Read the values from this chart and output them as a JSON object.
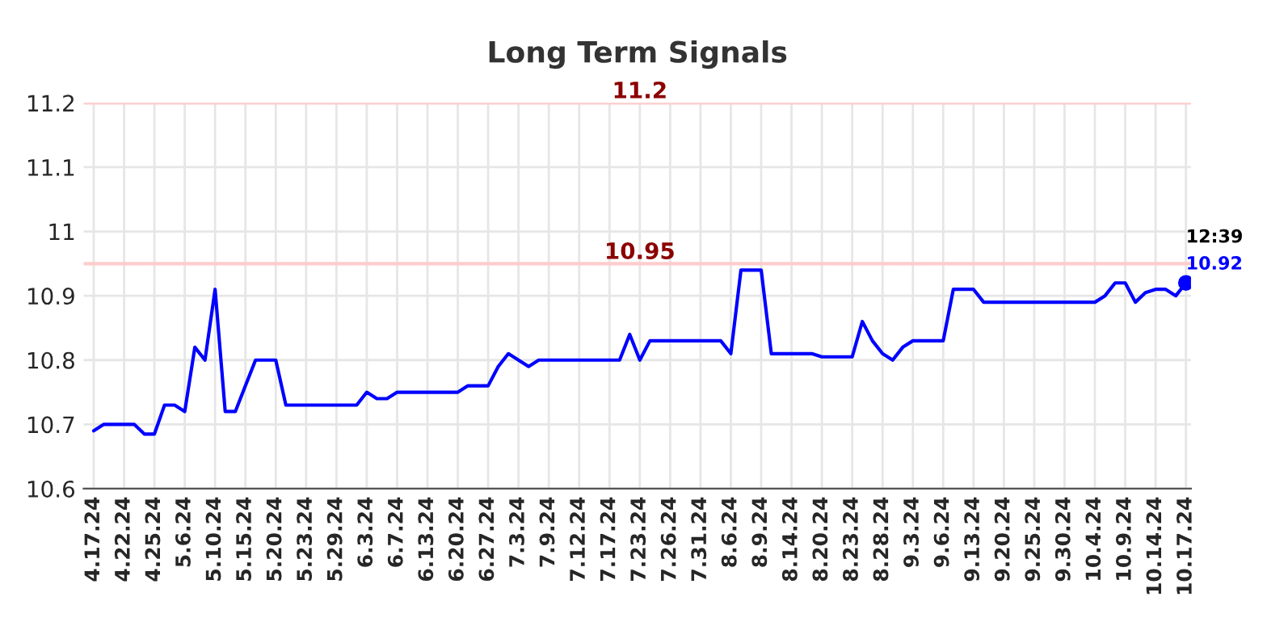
{
  "chart_data": {
    "type": "line",
    "title": "Long Term Signals",
    "categories": [
      "4.17.24",
      null,
      null,
      "4.22.24",
      null,
      null,
      "4.25.24",
      null,
      null,
      "5.6.24",
      null,
      null,
      "5.10.24",
      null,
      null,
      "5.15.24",
      null,
      null,
      "5.20.24",
      null,
      null,
      "5.23.24",
      null,
      null,
      "5.29.24",
      null,
      null,
      "6.3.24",
      null,
      null,
      "6.7.24",
      null,
      null,
      "6.13.24",
      null,
      null,
      "6.20.24",
      null,
      null,
      "6.27.24",
      null,
      null,
      "7.3.24",
      null,
      null,
      "7.9.24",
      null,
      null,
      "7.12.24",
      null,
      null,
      "7.17.24",
      null,
      null,
      "7.23.24",
      null,
      null,
      "7.26.24",
      null,
      null,
      "7.31.24",
      null,
      null,
      "8.6.24",
      null,
      null,
      "8.9.24",
      null,
      null,
      "8.14.24",
      null,
      null,
      "8.20.24",
      null,
      null,
      "8.23.24",
      null,
      null,
      "8.28.24",
      null,
      null,
      "9.3.24",
      null,
      null,
      "9.6.24",
      null,
      null,
      "9.13.24",
      null,
      null,
      "9.20.24",
      null,
      null,
      "9.25.24",
      null,
      null,
      "9.30.24",
      null,
      null,
      "10.4.24",
      null,
      null,
      "10.9.24",
      null,
      null,
      "10.14.24",
      null,
      null,
      "10.17.24"
    ],
    "series": [
      {
        "color": "#0000ff",
        "values": [
          10.69,
          10.7,
          10.7,
          10.7,
          10.7,
          10.685,
          10.685,
          10.73,
          10.73,
          10.72,
          10.82,
          10.8,
          10.91,
          10.72,
          10.72,
          10.76,
          10.8,
          10.8,
          10.8,
          10.73,
          10.73,
          10.73,
          10.73,
          10.73,
          10.73,
          10.73,
          10.73,
          10.75,
          10.74,
          10.74,
          10.75,
          10.75,
          10.75,
          10.75,
          10.75,
          10.75,
          10.75,
          10.76,
          10.76,
          10.76,
          10.79,
          10.81,
          10.8,
          10.79,
          10.8,
          10.8,
          10.8,
          10.8,
          10.8,
          10.8,
          10.8,
          10.8,
          10.8,
          10.84,
          10.8,
          10.83,
          10.83,
          10.83,
          10.83,
          10.83,
          10.83,
          10.83,
          10.83,
          10.81,
          10.94,
          10.94,
          10.94,
          10.81,
          10.81,
          10.81,
          10.81,
          10.81,
          10.805,
          10.805,
          10.805,
          10.805,
          10.86,
          10.83,
          10.81,
          10.8,
          10.82,
          10.83,
          10.83,
          10.83,
          10.83,
          10.91,
          10.91,
          10.91,
          10.89,
          10.89,
          10.89,
          10.89,
          10.89,
          10.89,
          10.89,
          10.89,
          10.89,
          10.89,
          10.89,
          10.89,
          10.9,
          10.92,
          10.92,
          10.89,
          10.905,
          10.91,
          10.91,
          10.9,
          10.92
        ]
      }
    ],
    "ylim": [
      10.6,
      11.2
    ],
    "yticks": [
      10.6,
      10.7,
      10.8,
      10.9,
      11,
      11.1,
      11.2
    ],
    "ref_lines": [
      {
        "axis": "y",
        "value": 11.2,
        "label": "11.2",
        "color": "#ffcccc"
      },
      {
        "axis": "y",
        "value": 10.95,
        "label": "10.95",
        "color": "#ffcccc"
      }
    ],
    "annotations": [
      {
        "text": "12:39",
        "x": "10.17.24",
        "y": 10.92
      },
      {
        "text": "10.92",
        "x": "10.17.24",
        "y": 10.92
      }
    ],
    "grid": true,
    "marker": "none",
    "line_style": "solid"
  }
}
